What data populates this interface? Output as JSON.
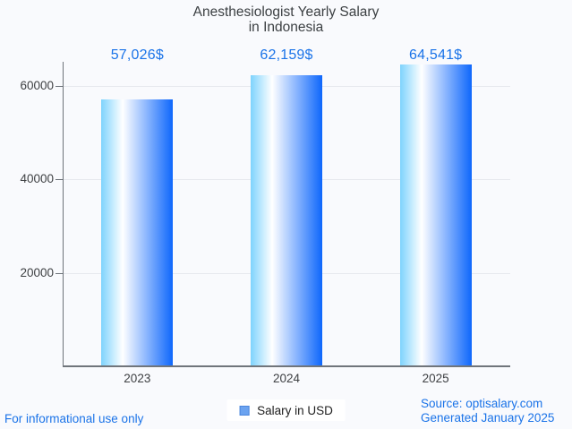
{
  "page": {
    "background": "#f9fafd",
    "link_color": "#1a73e8",
    "footer_left": "For informational use only",
    "footer_right_line1": "Source: optisalary.com",
    "footer_right_line2": "Generated January 2025"
  },
  "legend": {
    "label": "Salary in USD",
    "swatch_color": "#6ba3f0",
    "swatch_border": "#4b86dd"
  },
  "chart_data": {
    "type": "bar",
    "title": "Anesthesiologist Yearly Salary in Indonesia",
    "title_lines": [
      "Anesthesiologist Yearly Salary",
      "in Indonesia"
    ],
    "categories": [
      "2023",
      "2024",
      "2025"
    ],
    "series": [
      {
        "name": "Salary in USD",
        "values": [
          57026,
          62159,
          64541
        ]
      }
    ],
    "value_labels": [
      "57,026$",
      "62,159$",
      "64,541$"
    ],
    "value_label_color": "#1a73e8",
    "y_ticks": [
      20000,
      40000,
      60000
    ],
    "y_tick_labels": [
      "20000",
      "40000",
      "60000"
    ],
    "ylim": [
      0,
      65100
    ],
    "grid": true,
    "legend_position": "bottom",
    "bar_gradient": [
      "#7ed3fd",
      "#ffffff",
      "#0e67fc"
    ],
    "axis_color": "#6e737a",
    "gridline_color": "#e7e9ee",
    "tick_label_color": "#3e4043",
    "title_color": "#3c4043"
  }
}
